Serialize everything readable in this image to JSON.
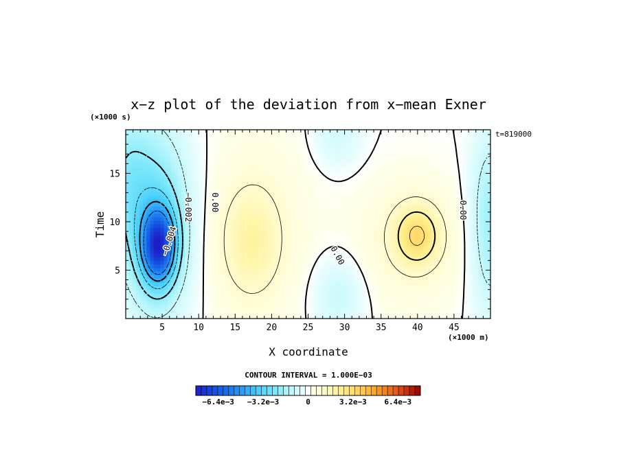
{
  "chart_data": {
    "type": "heatmap",
    "title": "x−z plot of the deviation from x−mean Exner",
    "xlabel": "X coordinate",
    "ylabel": "Time",
    "x_unit": "(×1000 m)",
    "y_unit": "(×1000 s)",
    "time_label": "t=819000",
    "xlim": [
      0,
      50
    ],
    "ylim": [
      0,
      19.5
    ],
    "x_ticks": [
      "5",
      "10",
      "15",
      "20",
      "25",
      "30",
      "35",
      "40",
      "45"
    ],
    "y_ticks": [
      "5",
      "10",
      "15"
    ],
    "contour_interval_text": "CONTOUR INTERVAL = 1.000E−03",
    "contour_labels": [
      "0.00",
      "−0.002",
      "−0.004",
      "0.00",
      "0.00"
    ],
    "colorbar": {
      "min": -0.008,
      "max": 0.008,
      "tick_labels": [
        "−6.4e−3",
        "−3.2e−3",
        "0",
        "3.2e−3",
        "6.4e−3"
      ],
      "tick_values": [
        -0.0064,
        -0.0032,
        0,
        0.0032,
        0.0064
      ]
    },
    "features": [
      {
        "kind": "minimum",
        "x": 4.5,
        "y": 7.5,
        "value": -0.0055
      },
      {
        "kind": "maximum",
        "x": 17.5,
        "y": 8.5,
        "value": 0.0015
      },
      {
        "kind": "maximum",
        "x": 40,
        "y": 8.5,
        "value": 0.0025
      },
      {
        "kind": "minimum",
        "x": 29,
        "y": 3,
        "value": -0.0007
      },
      {
        "kind": "minimum",
        "x": 29,
        "y": 17.5,
        "value": -0.0005
      },
      {
        "kind": "minimum",
        "x": 49.5,
        "y": 10,
        "value": -0.0015
      }
    ]
  }
}
